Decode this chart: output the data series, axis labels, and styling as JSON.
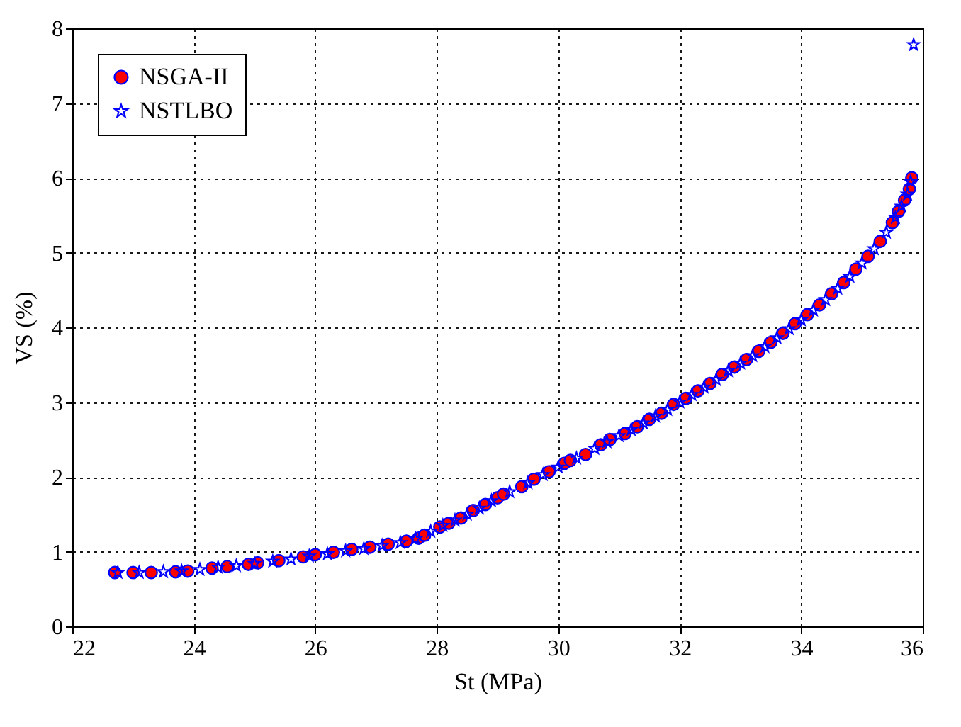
{
  "chart_data": {
    "type": "scatter",
    "xlabel": "St (MPa)",
    "ylabel": "VS (%)",
    "xlim": [
      22,
      36
    ],
    "xticks": [
      22,
      24,
      26,
      28,
      30,
      32,
      34,
      36
    ],
    "ylim": [
      0,
      8
    ],
    "yticks": [
      0,
      1,
      2,
      3,
      4,
      5,
      6,
      7,
      8
    ],
    "grid": true,
    "legend": "top left",
    "series": [
      {
        "name": "NSGA-II",
        "color": "#ff0000",
        "marker": "circle",
        "x": [
          22.7,
          23.0,
          23.3,
          23.7,
          23.9,
          24.3,
          24.55,
          24.9,
          25.05,
          25.4,
          25.8,
          26.0,
          26.3,
          26.6,
          26.9,
          27.2,
          27.5,
          27.7,
          27.8,
          28.05,
          28.2,
          28.4,
          28.6,
          28.8,
          29.0,
          29.1,
          29.4,
          29.6,
          29.85,
          30.1,
          30.2,
          30.45,
          30.7,
          30.85,
          31.1,
          31.3,
          31.5,
          31.7,
          31.9,
          32.1,
          32.3,
          32.5,
          32.7,
          32.9,
          33.1,
          33.3,
          33.5,
          33.7,
          33.9,
          34.1,
          34.3,
          34.5,
          34.7,
          34.9,
          35.1,
          35.3,
          35.5,
          35.6,
          35.7,
          35.78,
          35.82
        ],
        "values": [
          0.72,
          0.72,
          0.72,
          0.73,
          0.74,
          0.78,
          0.8,
          0.83,
          0.85,
          0.88,
          0.93,
          0.96,
          0.99,
          1.03,
          1.06,
          1.1,
          1.14,
          1.18,
          1.22,
          1.33,
          1.38,
          1.45,
          1.55,
          1.63,
          1.72,
          1.77,
          1.87,
          1.97,
          2.07,
          2.18,
          2.22,
          2.3,
          2.43,
          2.5,
          2.58,
          2.67,
          2.77,
          2.85,
          2.97,
          3.05,
          3.15,
          3.25,
          3.37,
          3.47,
          3.57,
          3.68,
          3.8,
          3.92,
          4.05,
          4.17,
          4.3,
          4.45,
          4.6,
          4.78,
          4.95,
          5.15,
          5.4,
          5.55,
          5.7,
          5.85,
          6.0
        ]
      },
      {
        "name": "NSTLBO",
        "color": "#0000ff",
        "marker": "star",
        "x": [
          22.75,
          23.1,
          23.5,
          23.8,
          24.1,
          24.4,
          24.7,
          25.0,
          25.3,
          25.6,
          25.9,
          26.2,
          26.5,
          26.8,
          27.1,
          27.4,
          27.65,
          27.9,
          28.1,
          28.3,
          28.5,
          28.7,
          28.9,
          29.2,
          29.5,
          29.75,
          30.0,
          30.3,
          30.6,
          30.8,
          31.0,
          31.2,
          31.4,
          31.6,
          31.8,
          32.0,
          32.2,
          32.4,
          32.6,
          32.8,
          33.0,
          33.2,
          33.4,
          33.6,
          33.8,
          34.0,
          34.2,
          34.4,
          34.6,
          34.8,
          35.0,
          35.2,
          35.4,
          35.55,
          35.65,
          35.75,
          35.8,
          35.85
        ],
        "values": [
          0.72,
          0.72,
          0.73,
          0.74,
          0.76,
          0.79,
          0.81,
          0.84,
          0.87,
          0.9,
          0.94,
          0.97,
          1.01,
          1.04,
          1.08,
          1.12,
          1.17,
          1.27,
          1.35,
          1.42,
          1.5,
          1.58,
          1.68,
          1.8,
          1.92,
          2.03,
          2.13,
          2.25,
          2.38,
          2.47,
          2.55,
          2.63,
          2.72,
          2.81,
          2.9,
          3.0,
          3.1,
          3.2,
          3.3,
          3.42,
          3.52,
          3.62,
          3.74,
          3.86,
          3.98,
          4.1,
          4.23,
          4.37,
          4.52,
          4.68,
          4.86,
          5.05,
          5.27,
          5.47,
          5.62,
          5.78,
          5.95,
          7.78
        ]
      }
    ]
  }
}
